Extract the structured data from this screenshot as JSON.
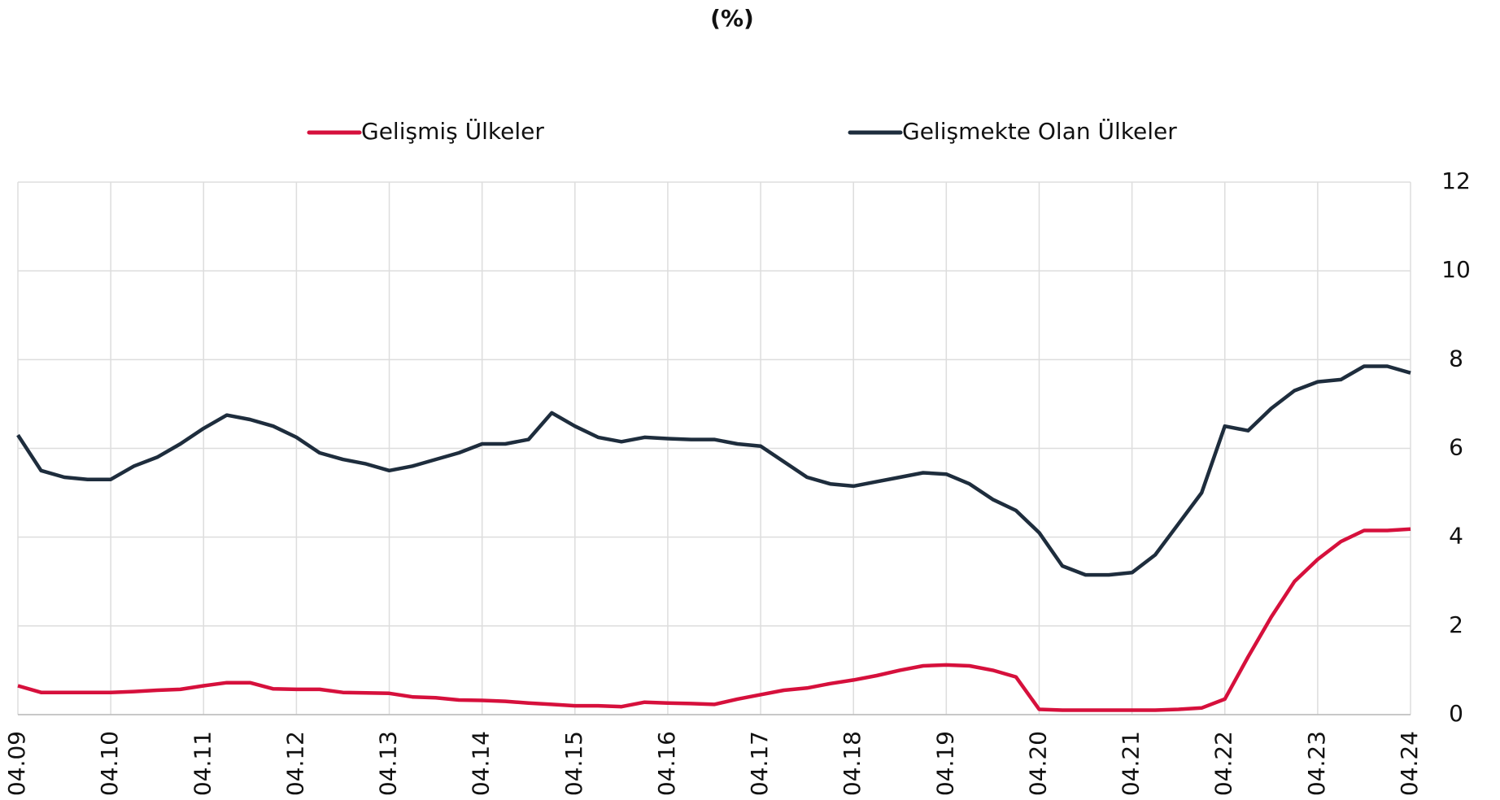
{
  "chart_data": {
    "type": "line",
    "title": "(%)",
    "categories": [
      "04.09",
      null,
      null,
      null,
      "04.10",
      null,
      null,
      null,
      "04.11",
      null,
      null,
      null,
      "04.12",
      null,
      null,
      null,
      "04.13",
      null,
      null,
      null,
      "04.14",
      null,
      null,
      null,
      "04.15",
      null,
      null,
      null,
      "04.16",
      null,
      null,
      null,
      "04.17",
      null,
      null,
      null,
      "04.18",
      null,
      null,
      null,
      "04.19",
      null,
      null,
      null,
      "04.20",
      null,
      null,
      null,
      "04.21",
      null,
      null,
      null,
      "04.22",
      null,
      null,
      null,
      "04.23",
      null,
      null,
      null,
      "04.24"
    ],
    "series": [
      {
        "name": "Gelişmiş Ülkeler",
        "color": "#d6103c",
        "values": [
          0.65,
          0.5,
          0.5,
          0.5,
          0.5,
          0.52,
          0.55,
          0.57,
          0.65,
          0.72,
          0.72,
          0.58,
          0.57,
          0.57,
          0.5,
          0.49,
          0.48,
          0.4,
          0.38,
          0.33,
          0.32,
          0.3,
          0.26,
          0.23,
          0.2,
          0.2,
          0.18,
          0.28,
          0.26,
          0.25,
          0.23,
          0.35,
          0.45,
          0.55,
          0.6,
          0.7,
          0.78,
          0.88,
          1.0,
          1.1,
          1.12,
          1.1,
          1.0,
          0.85,
          0.12,
          0.1,
          0.1,
          0.1,
          0.1,
          0.1,
          0.12,
          0.15,
          0.35,
          1.3,
          2.2,
          3.0,
          3.5,
          3.9,
          4.15,
          4.15,
          4.18
        ]
      },
      {
        "name": "Gelişmekte Olan Ülkeler",
        "color": "#1e2d3d",
        "values": [
          6.3,
          5.5,
          5.35,
          5.3,
          5.3,
          5.6,
          5.8,
          6.1,
          6.45,
          6.75,
          6.65,
          6.5,
          6.25,
          5.9,
          5.75,
          5.65,
          5.5,
          5.6,
          5.75,
          5.9,
          6.1,
          6.1,
          6.2,
          6.8,
          6.5,
          6.25,
          6.15,
          6.25,
          6.22,
          6.2,
          6.2,
          6.1,
          6.05,
          5.7,
          5.35,
          5.2,
          5.15,
          5.25,
          5.35,
          5.45,
          5.42,
          5.2,
          4.85,
          4.6,
          4.1,
          3.35,
          3.15,
          3.15,
          3.2,
          3.6,
          4.3,
          5.0,
          6.5,
          6.4,
          6.9,
          7.3,
          7.5,
          7.55,
          7.85,
          7.85,
          7.7
        ]
      }
    ],
    "ylim": [
      0,
      12
    ],
    "yticks": [
      0,
      2,
      4,
      6,
      8,
      10,
      12
    ],
    "grid": true
  }
}
